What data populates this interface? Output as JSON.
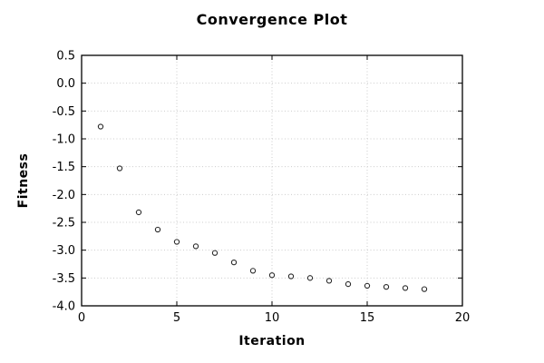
{
  "page": {
    "background": "#ffffff"
  },
  "chart_data": {
    "type": "scatter",
    "title": "Convergence Plot",
    "xlabel": "Iteration",
    "ylabel": "Fitness",
    "xlim": [
      0,
      20
    ],
    "ylim": [
      -4.0,
      0.5
    ],
    "xticks": [
      0,
      5,
      10,
      15,
      20
    ],
    "yticks": [
      0.5,
      0.0,
      -0.5,
      -1.0,
      -1.5,
      -2.0,
      -2.5,
      -3.0,
      -3.5,
      -4.0
    ],
    "grid": true,
    "grid_style": "dotted",
    "legend_position": "none",
    "series": [
      {
        "name": "fitness",
        "marker": "open-circle",
        "x": [
          1,
          2,
          3,
          4,
          5,
          6,
          7,
          8,
          9,
          10,
          11,
          12,
          13,
          14,
          15,
          16,
          17,
          18
        ],
        "y": [
          -0.78,
          -1.53,
          -2.32,
          -2.63,
          -2.85,
          -2.93,
          -3.05,
          -3.22,
          -3.37,
          -3.45,
          -3.47,
          -3.5,
          -3.55,
          -3.61,
          -3.64,
          -3.66,
          -3.68,
          -3.7
        ]
      }
    ],
    "colors": {
      "marker_stroke": "#2a2a2a",
      "marker_fill": "#ffffff",
      "grid": "#cccccc",
      "axis": "#000000",
      "text": "#000000",
      "background": "#ffffff"
    }
  }
}
